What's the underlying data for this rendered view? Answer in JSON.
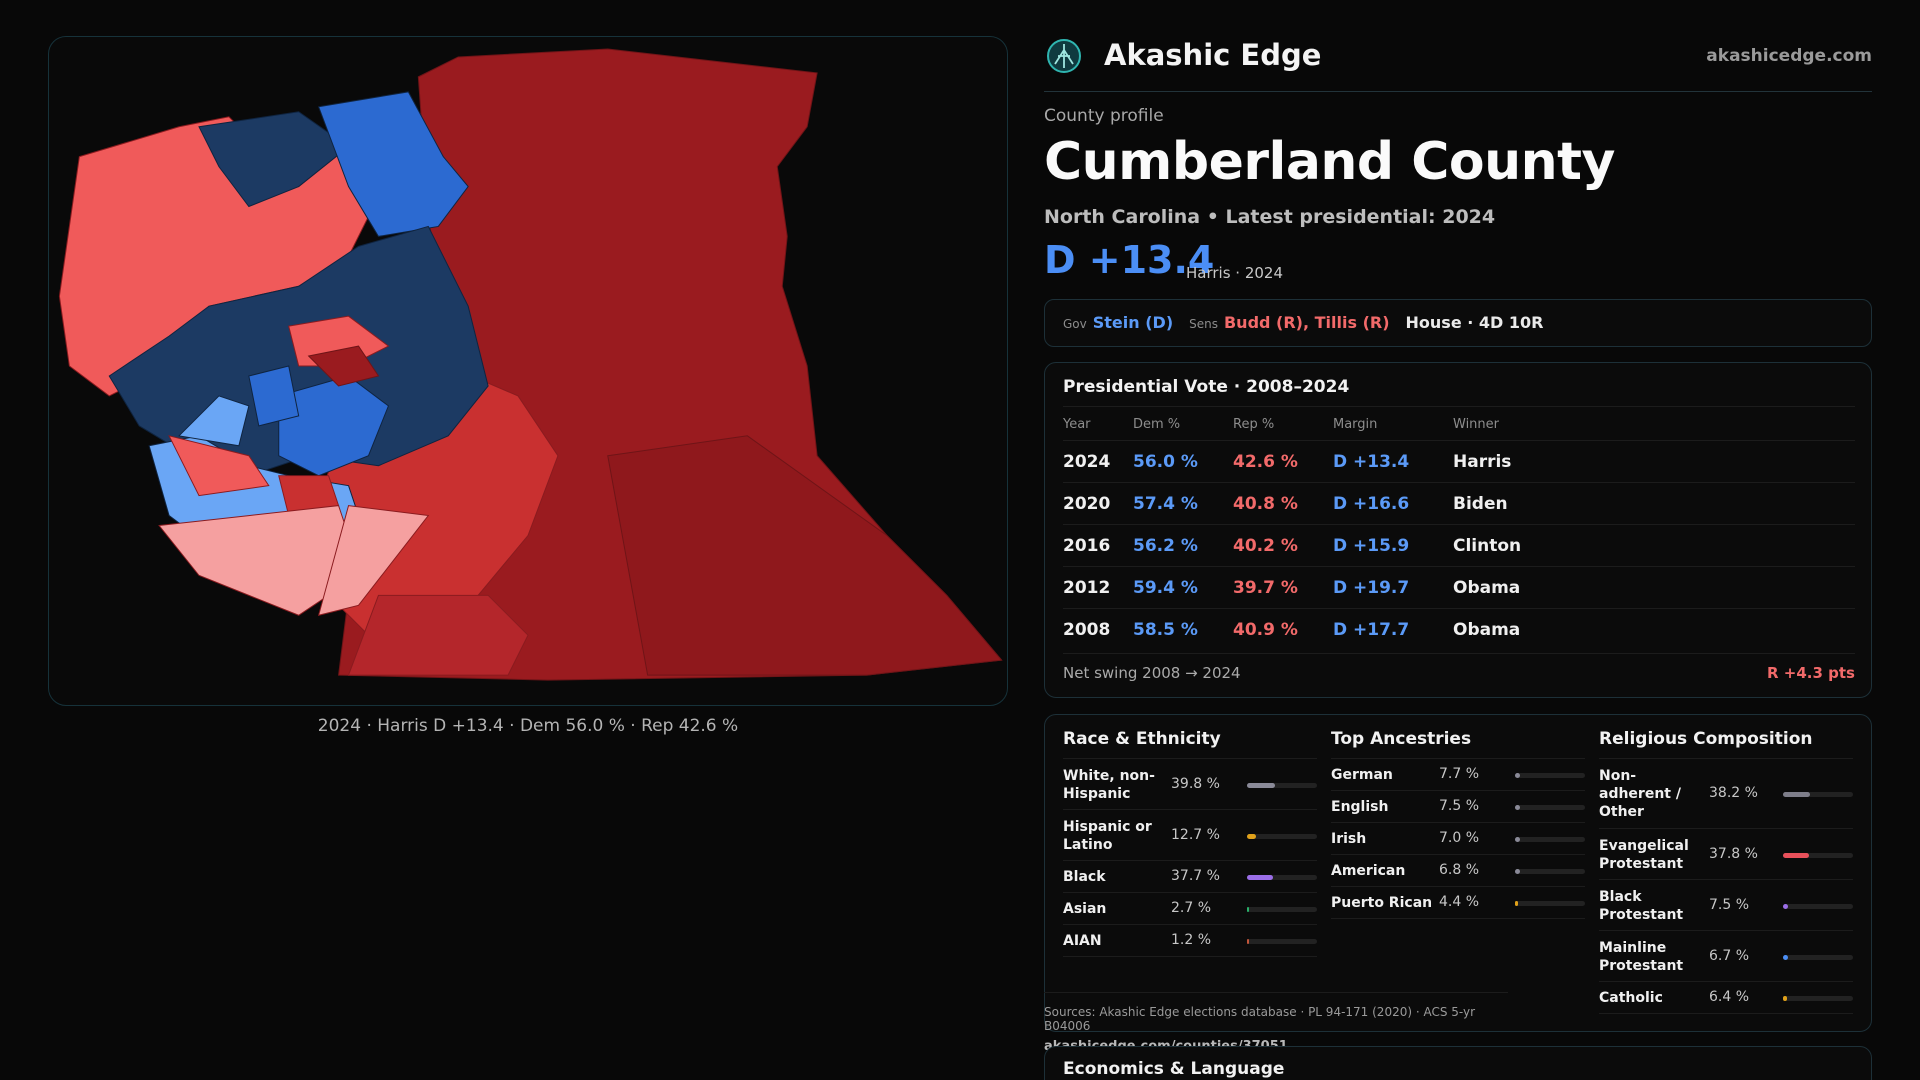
{
  "brand": {
    "name": "Akashic Edge",
    "site": "akashicedge.com",
    "logo_icon": "compass-logo-icon"
  },
  "profile": {
    "kicker": "County profile",
    "county": "Cumberland County",
    "subline": "North Carolina • Latest presidential: 2024",
    "margin": "D +13.4",
    "margin_note": "Harris · 2024"
  },
  "officials": {
    "gov_label": "Gov",
    "gov": "Stein (D)",
    "sens_label": "Sens",
    "sens": "Budd (R), Tillis (R)",
    "house": "House · 4D 10R"
  },
  "map": {
    "caption": "2024 · Harris D +13.4 · Dem 56.0 % · Rep 42.6 %",
    "colors": {
      "dem_strong": "#1c3a63",
      "dem": "#2c6ad1",
      "dem_lean": "#6aa6f5",
      "rep_lean": "#f5a0a0",
      "rep_mid": "#f05a5a",
      "rep": "#c93030",
      "rep_strong": "#9a1b1f",
      "border": "#16323a"
    }
  },
  "presidential": {
    "title": "Presidential Vote · 2008–2024",
    "headers": {
      "year": "Year",
      "dem": "Dem %",
      "rep": "Rep %",
      "margin": "Margin",
      "winner": "Winner"
    },
    "rows": [
      {
        "year": "2024",
        "dem": "56.0 %",
        "rep": "42.6 %",
        "margin": "D +13.4",
        "winner": "Harris"
      },
      {
        "year": "2020",
        "dem": "57.4 %",
        "rep": "40.8 %",
        "margin": "D +16.6",
        "winner": "Biden"
      },
      {
        "year": "2016",
        "dem": "56.2 %",
        "rep": "40.2 %",
        "margin": "D +15.9",
        "winner": "Clinton"
      },
      {
        "year": "2012",
        "dem": "59.4 %",
        "rep": "39.7 %",
        "margin": "D +19.7",
        "winner": "Obama"
      },
      {
        "year": "2008",
        "dem": "58.5 %",
        "rep": "40.9 %",
        "margin": "D +17.7",
        "winner": "Obama"
      }
    ],
    "swing_label": "Net swing 2008 → 2024",
    "swing_value": "R +4.3 pts"
  },
  "race": {
    "title": "Race & Ethnicity",
    "items": [
      {
        "label": "White, non-\nHispanic",
        "pct": "39.8 %",
        "value": 0.398,
        "color": "#8a8a98"
      },
      {
        "label": "Hispanic or\nLatino",
        "pct": "12.7 %",
        "value": 0.127,
        "color": "#e0a11a"
      },
      {
        "label": "Black",
        "pct": "37.7 %",
        "value": 0.377,
        "color": "#9b6ee8"
      },
      {
        "label": "Asian",
        "pct": "2.7 %",
        "value": 0.027,
        "color": "#29b06a"
      },
      {
        "label": "AIAN",
        "pct": "1.2 %",
        "value": 0.012,
        "color": "#c2553a"
      }
    ]
  },
  "ancestry": {
    "title": "Top Ancestries",
    "items": [
      {
        "label": "German",
        "pct": "7.7 %",
        "value": 0.077,
        "color": "#8a8a98"
      },
      {
        "label": "English",
        "pct": "7.5 %",
        "value": 0.075,
        "color": "#8a8a98"
      },
      {
        "label": "Irish",
        "pct": "7.0 %",
        "value": 0.07,
        "color": "#8a8a98"
      },
      {
        "label": "American",
        "pct": "6.8 %",
        "value": 0.068,
        "color": "#8a8a98"
      },
      {
        "label": "Puerto Rican",
        "pct": "4.4 %",
        "value": 0.044,
        "color": "#e0a11a"
      }
    ]
  },
  "religion": {
    "title": "Religious Composition",
    "items": [
      {
        "label": "Non-\nadherent /\nOther",
        "pct": "38.2 %",
        "value": 0.382,
        "color": "#7e7e8a"
      },
      {
        "label": "Evangelical\nProtestant",
        "pct": "37.8 %",
        "value": 0.378,
        "color": "#e8505a"
      },
      {
        "label": "Black\nProtestant",
        "pct": "7.5 %",
        "value": 0.075,
        "color": "#9b6ee8"
      },
      {
        "label": "Mainline\nProtestant",
        "pct": "6.7 %",
        "value": 0.067,
        "color": "#4b8ef5"
      },
      {
        "label": "Catholic",
        "pct": "6.4 %",
        "value": 0.064,
        "color": "#e0a11a"
      }
    ]
  },
  "sources": {
    "text": "Sources: Akashic Edge elections database · PL 94-171 (2020) · ACS 5-yr B04006",
    "url": "akashicedge.com/counties/37051"
  },
  "economics": {
    "title": "Economics & Language"
  }
}
